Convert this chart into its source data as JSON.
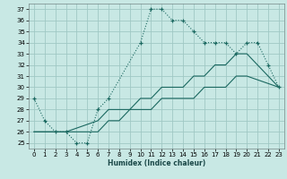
{
  "xlabel": "Humidex (Indice chaleur)",
  "background_color": "#c8e8e4",
  "grid_color": "#a0c8c4",
  "line_color": "#1a6860",
  "xlim": [
    -0.5,
    23.5
  ],
  "ylim": [
    24.5,
    37.5
  ],
  "xticks": [
    0,
    1,
    2,
    3,
    4,
    5,
    6,
    7,
    8,
    9,
    10,
    11,
    12,
    13,
    14,
    15,
    16,
    17,
    18,
    19,
    20,
    21,
    22,
    23
  ],
  "yticks": [
    25,
    26,
    27,
    28,
    29,
    30,
    31,
    32,
    33,
    34,
    35,
    36,
    37
  ],
  "curve_x": [
    0,
    1,
    2,
    3,
    4,
    5,
    6,
    7,
    10,
    11,
    12,
    13,
    14,
    15,
    16,
    17,
    18,
    19,
    20,
    21,
    22,
    23
  ],
  "curve_y": [
    29,
    27,
    26,
    26,
    25,
    25,
    28,
    29,
    34,
    37,
    37,
    36,
    36,
    35,
    34,
    34,
    34,
    33,
    34,
    34,
    32,
    30
  ],
  "diag1_x": [
    0,
    3,
    6,
    7,
    8,
    9,
    10,
    11,
    12,
    13,
    14,
    15,
    16,
    17,
    18,
    19,
    20,
    23
  ],
  "diag1_y": [
    26,
    26,
    26,
    27,
    27,
    28,
    28,
    28,
    29,
    29,
    29,
    29,
    30,
    30,
    30,
    31,
    31,
    30
  ],
  "diag2_x": [
    0,
    3,
    6,
    7,
    8,
    9,
    10,
    11,
    12,
    13,
    14,
    15,
    16,
    17,
    18,
    19,
    20,
    23
  ],
  "diag2_y": [
    26,
    26,
    27,
    28,
    28,
    28,
    29,
    29,
    30,
    30,
    30,
    31,
    31,
    32,
    32,
    33,
    33,
    30
  ]
}
